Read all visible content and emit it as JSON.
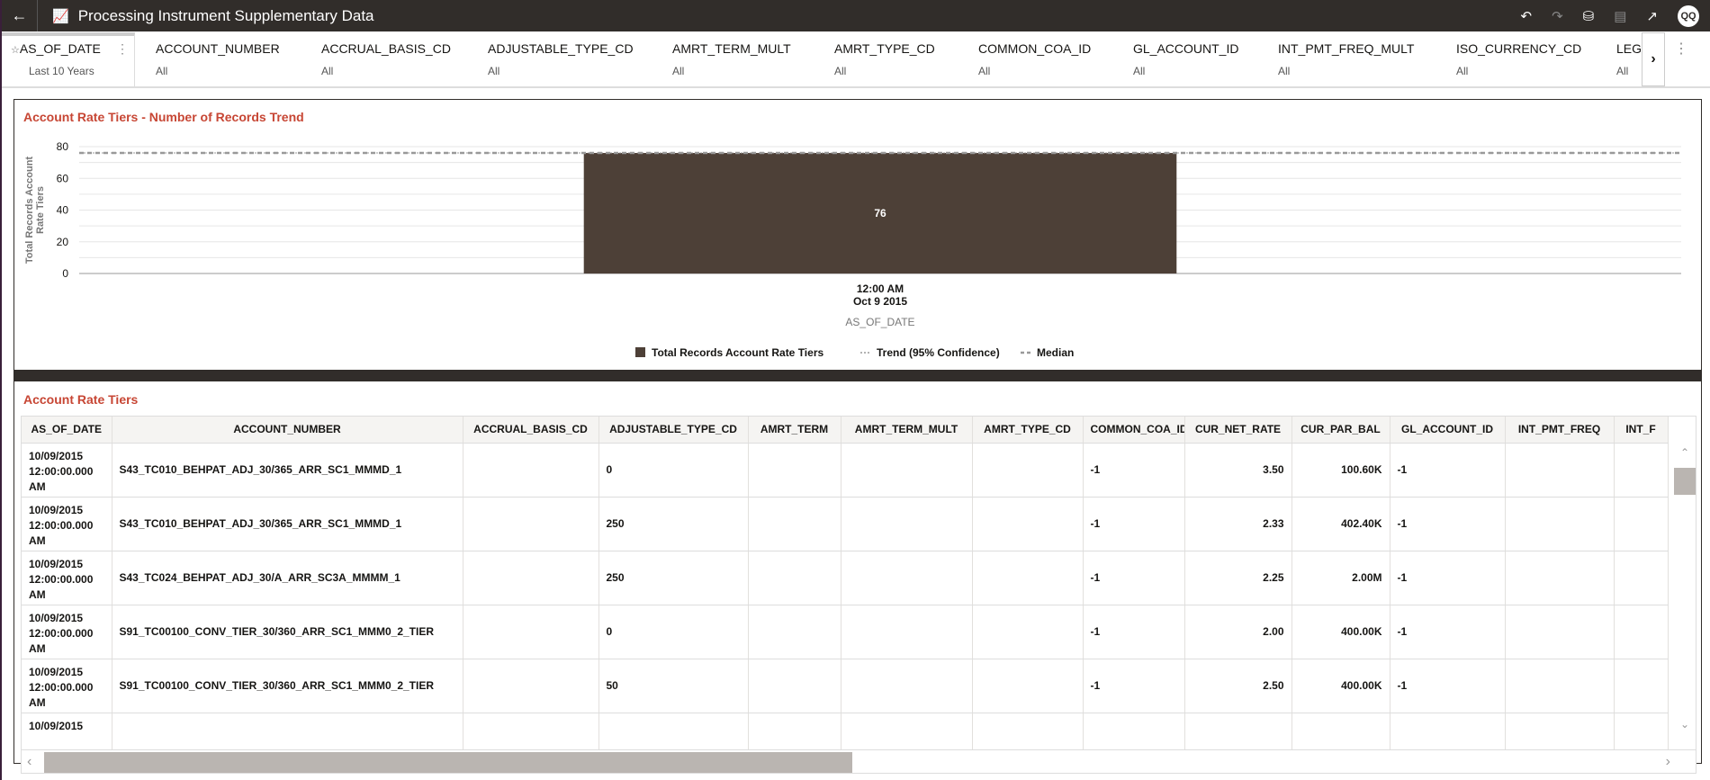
{
  "header": {
    "title": "Processing Instrument Supplementary Data",
    "user_initials": "QQ"
  },
  "filters": [
    {
      "label": "AS_OF_DATE",
      "value": "Last 10 Years"
    },
    {
      "label": "ACCOUNT_NUMBER",
      "value": "All"
    },
    {
      "label": "ACCRUAL_BASIS_CD",
      "value": "All"
    },
    {
      "label": "ADJUSTABLE_TYPE_CD",
      "value": "All"
    },
    {
      "label": "AMRT_TERM_MULT",
      "value": "All"
    },
    {
      "label": "AMRT_TYPE_CD",
      "value": "All"
    },
    {
      "label": "COMMON_COA_ID",
      "value": "All"
    },
    {
      "label": "GL_ACCOUNT_ID",
      "value": "All"
    },
    {
      "label": "INT_PMT_FREQ_MULT",
      "value": "All"
    },
    {
      "label": "ISO_CURRENCY_CD",
      "value": "All"
    },
    {
      "label": "LEGA",
      "value": "All"
    }
  ],
  "chart_data": {
    "type": "bar",
    "title": "Account Rate Tiers - Number of Records Trend",
    "categories": [
      "12:00 AM\nOct 9 2015"
    ],
    "category_lines": [
      "12:00 AM",
      "Oct 9 2015"
    ],
    "values": [
      76
    ],
    "xlabel": "AS_OF_DATE",
    "ylabel": "Total Records Account Rate Tiers",
    "ylim": [
      0,
      80
    ],
    "yticks": [
      0,
      20,
      40,
      60,
      80
    ],
    "trend_value": 76,
    "median_value": 76,
    "grid": true,
    "bar_color": "#4d4037",
    "legend": {
      "placement": "bottom",
      "items": [
        "Total Records Account Rate Tiers",
        "Trend (95% Confidence)",
        "Median"
      ]
    }
  },
  "table": {
    "title": "Account Rate Tiers",
    "columns": [
      "AS_OF_DATE",
      "ACCOUNT_NUMBER",
      "ACCRUAL_BASIS_CD",
      "ADJUSTABLE_TYPE_CD",
      "AMRT_TERM",
      "AMRT_TERM_MULT",
      "AMRT_TYPE_CD",
      "COMMON_COA_ID",
      "CUR_NET_RATE",
      "CUR_PAR_BAL",
      "GL_ACCOUNT_ID",
      "INT_PMT_FREQ",
      "INT_F"
    ],
    "rows": [
      [
        "10/09/2015 12:00:00.000 AM",
        "S43_TC010_BEHPAT_ADJ_30/365_ARR_SC1_MMMD_1",
        "",
        "0",
        "",
        "",
        "",
        "-1",
        "3.50",
        "100.60K",
        "-1",
        "",
        ""
      ],
      [
        "10/09/2015 12:00:00.000 AM",
        "S43_TC010_BEHPAT_ADJ_30/365_ARR_SC1_MMMD_1",
        "",
        "250",
        "",
        "",
        "",
        "-1",
        "2.33",
        "402.40K",
        "-1",
        "",
        ""
      ],
      [
        "10/09/2015 12:00:00.000 AM",
        "S43_TC024_BEHPAT_ADJ_30/A_ARR_SC3A_MMMM_1",
        "",
        "250",
        "",
        "",
        "",
        "-1",
        "2.25",
        "2.00M",
        "-1",
        "",
        ""
      ],
      [
        "10/09/2015 12:00:00.000 AM",
        "S91_TC00100_CONV_TIER_30/360_ARR_SC1_MMM0_2_TIER",
        "",
        "0",
        "",
        "",
        "",
        "-1",
        "2.00",
        "400.00K",
        "-1",
        "",
        ""
      ],
      [
        "10/09/2015 12:00:00.000 AM",
        "S91_TC00100_CONV_TIER_30/360_ARR_SC1_MMM0_2_TIER",
        "",
        "50",
        "",
        "",
        "",
        "-1",
        "2.50",
        "400.00K",
        "-1",
        "",
        ""
      ],
      [
        "10/09/2015",
        "",
        "",
        "",
        "",
        "",
        "",
        "",
        "",
        "",
        "",
        "",
        ""
      ]
    ]
  }
}
